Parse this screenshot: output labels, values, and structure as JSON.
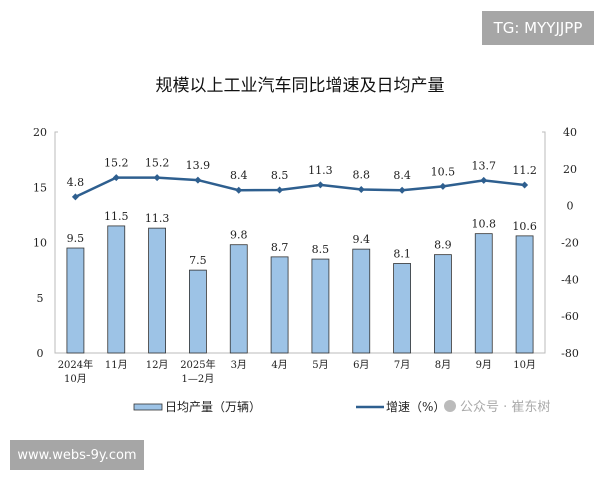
{
  "watermarks": {
    "top_right": "TG: MYYJJPP",
    "bottom_left": "www.webs-9y.com",
    "wechat": "公众号 · 崔东树"
  },
  "chart_data": {
    "type": "bar+line",
    "title": "规模以上工业汽车同比增速及日均产量",
    "categories": [
      [
        "2024年",
        "10月"
      ],
      [
        "11月"
      ],
      [
        "12月"
      ],
      [
        "2025年",
        "1—2月"
      ],
      [
        "3月"
      ],
      [
        "4月"
      ],
      [
        "5月"
      ],
      [
        "6月"
      ],
      [
        "7月"
      ],
      [
        "8月"
      ],
      [
        "9月"
      ],
      [
        "10月"
      ]
    ],
    "series": [
      {
        "name": "日均产量（万辆）",
        "type": "bar",
        "axis": "left",
        "color": "#9dc3e6",
        "values": [
          9.5,
          11.5,
          11.3,
          7.5,
          9.8,
          8.7,
          8.5,
          9.4,
          8.1,
          8.9,
          10.8,
          10.6
        ]
      },
      {
        "name": "增速（%）",
        "type": "line",
        "axis": "right",
        "color": "#2e5f8f",
        "values": [
          4.8,
          15.2,
          15.2,
          13.9,
          8.4,
          8.5,
          11.3,
          8.8,
          8.4,
          10.5,
          13.7,
          11.2
        ]
      }
    ],
    "left_axis": {
      "range": [
        0,
        20
      ],
      "ticks": [
        0,
        5,
        10,
        15,
        20
      ]
    },
    "right_axis": {
      "range": [
        -80,
        40
      ],
      "ticks": [
        -80,
        -60,
        -40,
        -20,
        0,
        20,
        40
      ]
    },
    "grid": false,
    "legend": "bottom"
  }
}
